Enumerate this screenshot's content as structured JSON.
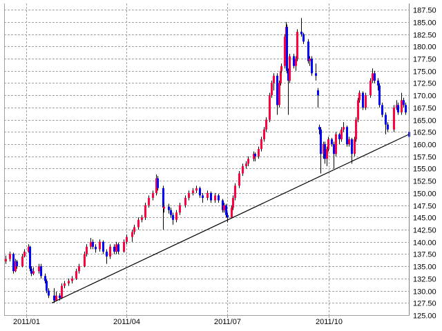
{
  "chart_data": {
    "type": "candlestick",
    "title": "",
    "xlabel": "",
    "ylabel": "",
    "xlim": [
      "2010-12-12",
      "2011-12-12"
    ],
    "ylim": [
      125.0,
      188.8
    ],
    "grid": true,
    "y_ticks": [
      "125.00",
      "127.50",
      "130.00",
      "132.50",
      "135.00",
      "137.50",
      "140.00",
      "142.50",
      "145.00",
      "147.50",
      "150.00",
      "152.50",
      "155.00",
      "157.50",
      "160.00",
      "162.50",
      "165.00",
      "167.50",
      "170.00",
      "172.50",
      "175.00",
      "177.50",
      "180.00",
      "182.50",
      "185.00",
      "187.50"
    ],
    "x_ticks": [
      {
        "date": "2011-01-01",
        "label": "2011/01"
      },
      {
        "date": "2011-04-01",
        "label": "2011/04"
      },
      {
        "date": "2011-07-01",
        "label": "2011/07"
      },
      {
        "date": "2011-10-01",
        "label": "2011/10"
      }
    ],
    "colors": {
      "up": "#ff0040",
      "down": "#0000ff",
      "wick": "#000000",
      "grid": "#a0a0a0",
      "axis": "#a0a0a0",
      "trendline": "#000000"
    },
    "trendline": {
      "start": [
        "2011-01-24",
        127.5
      ],
      "end": [
        "2011-12-12",
        162.0
      ]
    },
    "candle_fields": [
      "date",
      "open",
      "high",
      "low",
      "close"
    ],
    "candles": [
      [
        "2010-12-13",
        136.0,
        137.2,
        135.5,
        136.5
      ],
      [
        "2010-12-17",
        136.5,
        138.0,
        136.0,
        137.5
      ],
      [
        "2010-12-20",
        137.5,
        137.8,
        133.5,
        134.0
      ],
      [
        "2010-12-22",
        134.0,
        136.5,
        133.8,
        136.0
      ],
      [
        "2010-12-23",
        136.0,
        136.3,
        134.5,
        135.0
      ],
      [
        "2010-12-28",
        135.0,
        137.5,
        134.8,
        137.0
      ],
      [
        "2010-12-30",
        137.0,
        138.5,
        136.8,
        138.0
      ],
      [
        "2011-01-03",
        138.0,
        139.5,
        137.8,
        139.0
      ],
      [
        "2011-01-04",
        139.0,
        139.2,
        134.0,
        134.5
      ],
      [
        "2011-01-05",
        134.5,
        135.0,
        133.0,
        133.5
      ],
      [
        "2011-01-07",
        133.5,
        134.8,
        133.2,
        134.0
      ],
      [
        "2011-01-12",
        134.0,
        135.5,
        133.5,
        135.0
      ],
      [
        "2011-01-14",
        135.0,
        135.5,
        132.5,
        133.0
      ],
      [
        "2011-01-18",
        133.0,
        133.5,
        131.5,
        132.0
      ],
      [
        "2011-01-19",
        132.0,
        132.3,
        129.5,
        130.0
      ],
      [
        "2011-01-21",
        130.0,
        130.5,
        128.5,
        129.0
      ],
      [
        "2011-01-26",
        129.0,
        130.5,
        127.5,
        128.0
      ],
      [
        "2011-01-28",
        128.0,
        129.8,
        127.8,
        129.0
      ],
      [
        "2011-01-31",
        129.0,
        129.5,
        128.0,
        128.5
      ],
      [
        "2011-02-02",
        128.5,
        131.5,
        128.3,
        131.0
      ],
      [
        "2011-02-04",
        131.0,
        132.0,
        130.5,
        131.5
      ],
      [
        "2011-02-08",
        131.5,
        132.5,
        131.0,
        132.0
      ],
      [
        "2011-02-11",
        132.0,
        133.0,
        131.5,
        132.5
      ],
      [
        "2011-02-15",
        132.5,
        134.5,
        132.2,
        134.0
      ],
      [
        "2011-02-17",
        134.0,
        135.5,
        133.5,
        135.0
      ],
      [
        "2011-02-22",
        135.0,
        138.0,
        134.8,
        137.5
      ],
      [
        "2011-02-24",
        137.5,
        139.5,
        137.0,
        139.0
      ],
      [
        "2011-02-28",
        139.0,
        140.8,
        138.5,
        140.0
      ],
      [
        "2011-03-02",
        140.0,
        140.5,
        138.5,
        139.0
      ],
      [
        "2011-03-04",
        139.0,
        139.5,
        137.8,
        138.5
      ],
      [
        "2011-03-08",
        138.5,
        140.5,
        138.0,
        140.0
      ],
      [
        "2011-03-11",
        140.0,
        140.3,
        137.5,
        138.0
      ],
      [
        "2011-03-14",
        138.0,
        138.5,
        135.5,
        137.0
      ],
      [
        "2011-03-17",
        137.0,
        139.5,
        136.5,
        139.0
      ],
      [
        "2011-03-21",
        139.0,
        139.5,
        137.5,
        138.0
      ],
      [
        "2011-03-23",
        138.0,
        140.0,
        137.5,
        139.5
      ],
      [
        "2011-03-25",
        139.5,
        139.8,
        137.5,
        138.0
      ],
      [
        "2011-03-30",
        138.0,
        140.5,
        137.8,
        140.0
      ],
      [
        "2011-04-01",
        140.0,
        141.5,
        139.5,
        141.0
      ],
      [
        "2011-04-06",
        141.0,
        142.5,
        140.0,
        142.0
      ],
      [
        "2011-04-08",
        142.0,
        143.5,
        141.5,
        143.0
      ],
      [
        "2011-04-12",
        143.0,
        145.0,
        142.5,
        144.5
      ],
      [
        "2011-04-15",
        144.5,
        145.5,
        144.0,
        145.0
      ],
      [
        "2011-04-18",
        145.0,
        148.0,
        144.5,
        147.5
      ],
      [
        "2011-04-21",
        147.5,
        149.5,
        147.0,
        149.0
      ],
      [
        "2011-04-25",
        149.0,
        150.5,
        148.5,
        150.0
      ],
      [
        "2011-04-28",
        150.0,
        153.8,
        149.5,
        153.0
      ],
      [
        "2011-04-29",
        153.0,
        153.5,
        150.5,
        151.0
      ],
      [
        "2011-05-04",
        151.0,
        151.5,
        142.5,
        147.0
      ],
      [
        "2011-05-05",
        146.8,
        148.0,
        146.0,
        147.2
      ],
      [
        "2011-05-09",
        147.2,
        147.8,
        145.8,
        146.5
      ],
      [
        "2011-05-11",
        146.5,
        147.0,
        145.0,
        145.5
      ],
      [
        "2011-05-13",
        145.5,
        146.0,
        143.5,
        144.5
      ],
      [
        "2011-05-16",
        144.5,
        146.5,
        144.0,
        146.0
      ],
      [
        "2011-05-19",
        146.0,
        148.0,
        145.5,
        147.5
      ],
      [
        "2011-05-24",
        147.5,
        149.5,
        147.0,
        149.0
      ],
      [
        "2011-05-27",
        149.0,
        150.5,
        148.5,
        150.0
      ],
      [
        "2011-05-31",
        150.0,
        151.0,
        149.5,
        150.5
      ],
      [
        "2011-06-03",
        150.5,
        151.5,
        150.0,
        151.0
      ],
      [
        "2011-06-06",
        151.0,
        151.3,
        149.0,
        149.5
      ],
      [
        "2011-06-09",
        149.5,
        150.0,
        148.0,
        149.0
      ],
      [
        "2011-06-13",
        149.0,
        150.5,
        148.5,
        150.0
      ],
      [
        "2011-06-16",
        150.0,
        150.3,
        148.0,
        148.5
      ],
      [
        "2011-06-20",
        148.5,
        150.0,
        148.0,
        149.5
      ],
      [
        "2011-06-23",
        149.5,
        149.8,
        148.0,
        148.5
      ],
      [
        "2011-06-27",
        148.5,
        148.8,
        146.0,
        146.5
      ],
      [
        "2011-06-28",
        146.5,
        148.0,
        146.0,
        147.5
      ],
      [
        "2011-06-30",
        147.5,
        147.8,
        145.0,
        145.5
      ],
      [
        "2011-07-01",
        145.5,
        146.0,
        144.0,
        145.0
      ],
      [
        "2011-07-05",
        145.0,
        147.5,
        144.8,
        147.0
      ],
      [
        "2011-07-06",
        147.0,
        149.5,
        146.5,
        149.0
      ],
      [
        "2011-07-08",
        149.0,
        152.0,
        148.5,
        151.5
      ],
      [
        "2011-07-12",
        151.5,
        154.5,
        151.0,
        154.0
      ],
      [
        "2011-07-15",
        154.0,
        156.0,
        153.5,
        155.5
      ],
      [
        "2011-07-18",
        155.5,
        156.5,
        155.0,
        156.0
      ],
      [
        "2011-07-20",
        156.0,
        157.5,
        155.5,
        157.0
      ],
      [
        "2011-07-25",
        157.0,
        158.5,
        156.5,
        158.0
      ],
      [
        "2011-07-26",
        158.0,
        158.3,
        156.5,
        157.5
      ],
      [
        "2011-07-29",
        157.5,
        159.5,
        157.0,
        159.0
      ],
      [
        "2011-08-01",
        159.0,
        161.5,
        158.5,
        161.0
      ],
      [
        "2011-08-03",
        161.0,
        163.5,
        160.5,
        163.0
      ],
      [
        "2011-08-05",
        163.0,
        165.5,
        162.5,
        165.0
      ],
      [
        "2011-08-08",
        165.0,
        170.5,
        164.5,
        170.0
      ],
      [
        "2011-08-10",
        170.0,
        173.0,
        169.5,
        172.5
      ],
      [
        "2011-08-12",
        172.5,
        174.5,
        171.0,
        174.0
      ],
      [
        "2011-08-15",
        174.0,
        174.5,
        166.0,
        168.0
      ],
      [
        "2011-08-17",
        168.0,
        173.0,
        167.5,
        172.5
      ],
      [
        "2011-08-18",
        172.5,
        175.5,
        172.0,
        175.0
      ],
      [
        "2011-08-19",
        175.0,
        176.5,
        174.5,
        176.0
      ],
      [
        "2011-08-22",
        176.0,
        182.5,
        175.5,
        182.0
      ],
      [
        "2011-08-23",
        182.0,
        185.0,
        181.5,
        184.0
      ],
      [
        "2011-08-24",
        184.0,
        184.5,
        174.5,
        175.0
      ],
      [
        "2011-08-25",
        175.0,
        175.5,
        166.0,
        173.0
      ],
      [
        "2011-08-26",
        173.0,
        178.5,
        172.5,
        178.0
      ],
      [
        "2011-08-30",
        178.0,
        178.5,
        175.5,
        176.0
      ],
      [
        "2011-09-01",
        176.0,
        178.0,
        175.0,
        177.5
      ],
      [
        "2011-09-02",
        177.5,
        183.5,
        177.0,
        183.0
      ],
      [
        "2011-09-06",
        183.0,
        185.8,
        182.0,
        182.5
      ],
      [
        "2011-09-08",
        182.5,
        182.8,
        180.5,
        181.0
      ],
      [
        "2011-09-12",
        181.0,
        181.5,
        176.5,
        177.0
      ],
      [
        "2011-09-13",
        177.0,
        178.0,
        176.0,
        177.5
      ],
      [
        "2011-09-15",
        177.5,
        178.0,
        174.0,
        174.5
      ],
      [
        "2011-09-19",
        174.5,
        176.5,
        173.0,
        174.0
      ],
      [
        "2011-09-21",
        171.0,
        171.5,
        167.5,
        170.0
      ],
      [
        "2011-09-22",
        163.5,
        164.0,
        162.0,
        163.0
      ],
      [
        "2011-09-23",
        163.0,
        163.5,
        154.0,
        158.0
      ],
      [
        "2011-09-26",
        158.0,
        160.5,
        157.0,
        160.0
      ],
      [
        "2011-09-27",
        160.0,
        160.5,
        156.0,
        157.0
      ],
      [
        "2011-09-29",
        157.0,
        159.5,
        155.5,
        159.0
      ],
      [
        "2011-09-30",
        159.0,
        161.5,
        158.5,
        161.0
      ],
      [
        "2011-10-03",
        161.0,
        161.3,
        159.5,
        160.0
      ],
      [
        "2011-10-05",
        160.0,
        160.5,
        155.0,
        158.0
      ],
      [
        "2011-10-07",
        158.0,
        162.5,
        157.5,
        162.0
      ],
      [
        "2011-10-10",
        162.0,
        162.3,
        160.0,
        161.0
      ],
      [
        "2011-10-12",
        161.0,
        163.5,
        160.5,
        163.0
      ],
      [
        "2011-10-14",
        163.0,
        164.5,
        162.5,
        163.5
      ],
      [
        "2011-10-17",
        163.5,
        163.8,
        159.5,
        160.0
      ],
      [
        "2011-10-19",
        160.0,
        161.5,
        159.5,
        161.0
      ],
      [
        "2011-10-21",
        161.0,
        161.3,
        156.0,
        158.0
      ],
      [
        "2011-10-24",
        158.0,
        161.5,
        157.5,
        161.0
      ],
      [
        "2011-10-25",
        161.0,
        165.5,
        160.5,
        165.0
      ],
      [
        "2011-10-27",
        165.0,
        169.5,
        164.5,
        169.0
      ],
      [
        "2011-10-28",
        169.0,
        171.0,
        168.5,
        170.5
      ],
      [
        "2011-10-31",
        170.5,
        170.8,
        167.0,
        167.5
      ],
      [
        "2011-11-03",
        167.5,
        170.5,
        167.0,
        170.0
      ],
      [
        "2011-11-07",
        170.0,
        173.5,
        169.5,
        173.0
      ],
      [
        "2011-11-09",
        173.0,
        175.5,
        172.5,
        174.5
      ],
      [
        "2011-11-11",
        174.5,
        175.0,
        172.5,
        173.0
      ],
      [
        "2011-11-14",
        173.0,
        173.5,
        171.0,
        172.0
      ],
      [
        "2011-11-15",
        172.0,
        172.5,
        167.5,
        168.0
      ],
      [
        "2011-11-18",
        168.0,
        168.5,
        165.5,
        166.0
      ],
      [
        "2011-11-21",
        166.0,
        166.5,
        162.0,
        164.0
      ],
      [
        "2011-11-23",
        164.0,
        164.5,
        162.5,
        163.0
      ],
      [
        "2011-11-28",
        163.0,
        168.0,
        162.5,
        167.5
      ],
      [
        "2011-12-01",
        167.5,
        169.0,
        167.0,
        168.0
      ],
      [
        "2011-12-02",
        168.0,
        168.5,
        166.0,
        166.5
      ],
      [
        "2011-12-05",
        166.5,
        170.5,
        166.0,
        169.0
      ],
      [
        "2011-12-07",
        169.0,
        169.5,
        167.5,
        168.0
      ],
      [
        "2011-12-09",
        168.0,
        168.5,
        166.0,
        166.5
      ],
      [
        "2011-12-12",
        162.5,
        162.8,
        161.0,
        161.5
      ]
    ]
  }
}
